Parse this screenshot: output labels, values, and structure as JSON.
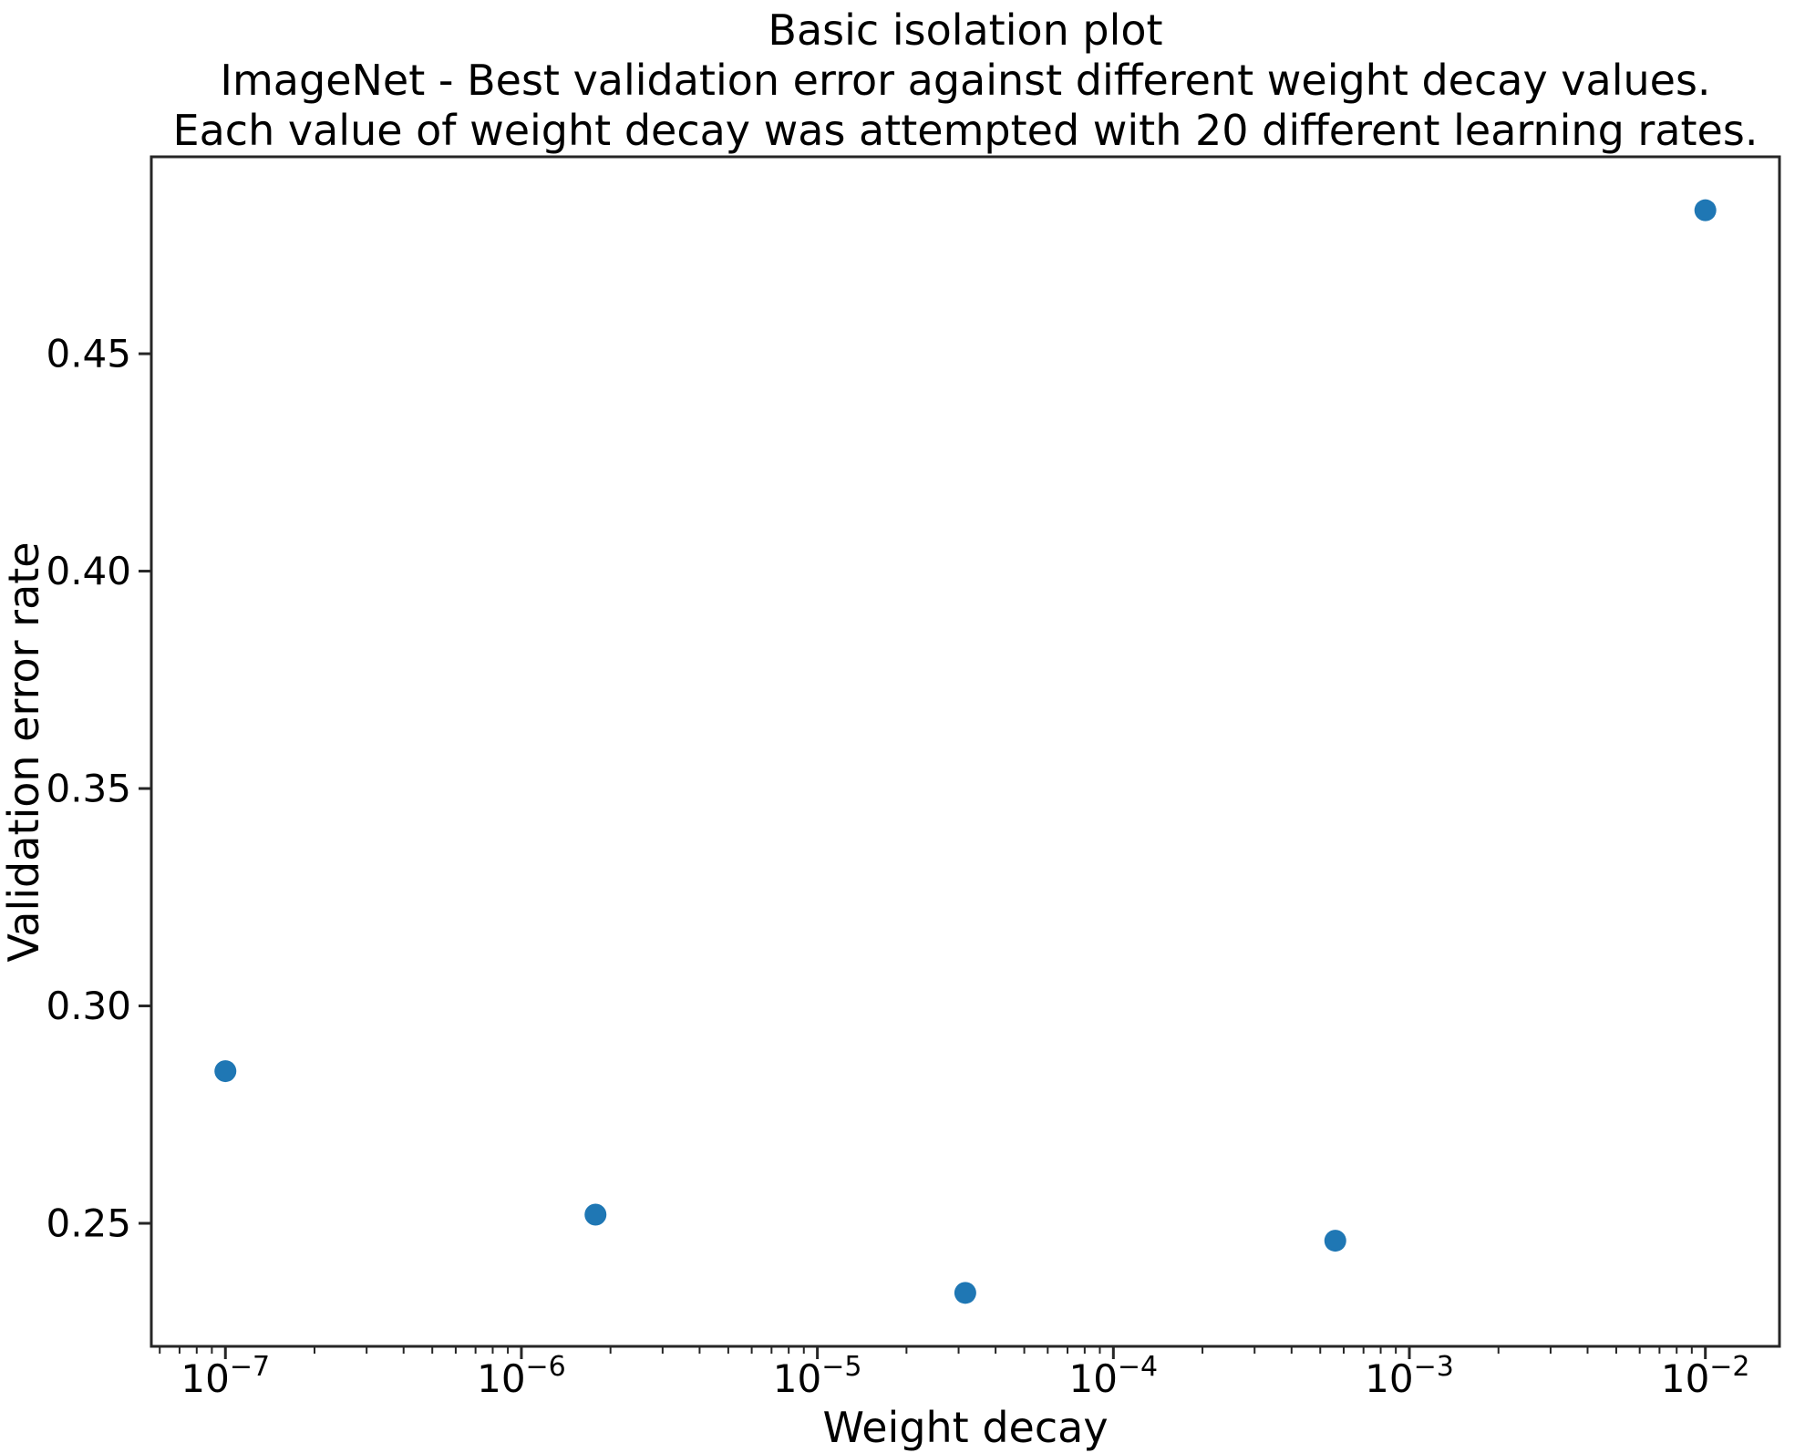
{
  "chart_data": {
    "type": "scatter",
    "title": "Basic isolation plot",
    "subtitle_line1": "ImageNet - Best validation error against different weight decay values.",
    "subtitle_line2": "Each value of weight decay was attempted with 20 different learning rates.",
    "xlabel": "Weight decay",
    "ylabel": "Validation error rate",
    "x_scale": "log",
    "y_scale": "linear",
    "grid": false,
    "legend": null,
    "x": [
      1e-07,
      1.78e-06,
      3.16e-05,
      0.000562,
      0.01
    ],
    "y": [
      0.285,
      0.252,
      0.234,
      0.246,
      0.483
    ],
    "xlim": [
      5.62e-08,
      0.0178
    ],
    "ylim": [
      0.2217,
      0.4953
    ],
    "xticks": [
      1e-07,
      1e-06,
      1e-05,
      0.0001,
      0.001,
      0.01
    ],
    "yticks": [
      0.25,
      0.3,
      0.35,
      0.4,
      0.45
    ],
    "ytick_labels": [
      "0.25",
      "0.30",
      "0.35",
      "0.40",
      "0.45"
    ],
    "marker_color": "#1f77b4",
    "axis_color": "#262626",
    "text_color": "#000000"
  }
}
